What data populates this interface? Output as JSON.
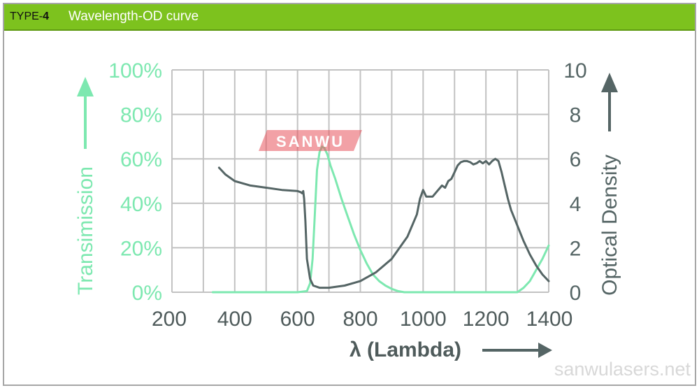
{
  "header": {
    "type_prefix": "TYPE-",
    "type_number": "4",
    "title": "Wavelength-OD curve",
    "accent_color": "#7dc21e"
  },
  "watermarks": {
    "logo_text": "SANWU",
    "logo_color": "#e8535d",
    "site": "sanwulasers.net"
  },
  "chart_data": {
    "type": "line",
    "xlabel": "λ (Lambda)",
    "y_left_label": "Transimission",
    "y_right_label": "Optical Density",
    "xlim": [
      200,
      1400
    ],
    "x_ticks": [
      200,
      400,
      600,
      800,
      1000,
      1200,
      1400
    ],
    "y_left_lim": [
      0,
      100
    ],
    "y_left_ticks": [
      "0%",
      "20%",
      "40%",
      "60%",
      "80%",
      "100%"
    ],
    "y_right_lim": [
      0,
      10
    ],
    "y_right_ticks": [
      0,
      2,
      4,
      6,
      8,
      10
    ],
    "grid": true,
    "colors": {
      "transmission": "#7de8b0",
      "od": "#556565",
      "left_axis_text": "#7de8b0",
      "right_axis_text": "#556565",
      "bottom_axis_text": "#4f5b5b",
      "grid": "#c2c2c2"
    },
    "series": [
      {
        "axis": "left",
        "x": [
          330,
          400,
          500,
          600,
          630,
          640,
          648,
          655,
          662,
          670,
          678,
          685,
          695,
          705,
          720,
          740,
          760,
          780,
          800,
          820,
          840,
          860,
          880,
          900,
          920,
          940,
          960,
          1000,
          1100,
          1200,
          1300,
          1320,
          1340,
          1360,
          1380,
          1400
        ],
        "values": [
          0,
          0,
          0,
          0,
          0.5,
          4,
          15,
          35,
          55,
          63,
          65.5,
          65,
          62,
          57,
          51,
          42,
          34,
          26,
          19,
          13,
          8,
          5,
          3,
          1.5,
          0.5,
          0,
          0,
          0,
          0,
          0,
          0,
          2,
          5,
          10,
          15,
          21
        ]
      },
      {
        "axis": "right",
        "x": [
          350,
          370,
          400,
          450,
          500,
          550,
          600,
          610,
          615,
          618,
          621,
          625,
          630,
          640,
          650,
          670,
          700,
          750,
          800,
          850,
          900,
          950,
          980,
          990,
          1000,
          1010,
          1030,
          1060,
          1070,
          1080,
          1090,
          1100,
          1110,
          1120,
          1130,
          1140,
          1150,
          1160,
          1170,
          1180,
          1190,
          1200,
          1210,
          1220,
          1230,
          1240,
          1250,
          1260,
          1270,
          1280,
          1300,
          1320,
          1340,
          1360,
          1380,
          1400
        ],
        "values": [
          5.6,
          5.3,
          5.0,
          4.8,
          4.7,
          4.6,
          4.55,
          4.5,
          4.45,
          4.55,
          4.2,
          3.2,
          1.5,
          0.6,
          0.3,
          0.2,
          0.2,
          0.3,
          0.5,
          0.9,
          1.5,
          2.5,
          3.5,
          4.2,
          4.6,
          4.3,
          4.3,
          4.8,
          4.7,
          5.0,
          5.1,
          5.4,
          5.7,
          5.85,
          5.9,
          5.9,
          5.85,
          5.75,
          5.8,
          5.9,
          5.8,
          5.9,
          5.75,
          5.9,
          6.0,
          5.9,
          5.4,
          4.8,
          4.2,
          3.7,
          3.0,
          2.3,
          1.7,
          1.2,
          0.8,
          0.5
        ]
      }
    ]
  }
}
